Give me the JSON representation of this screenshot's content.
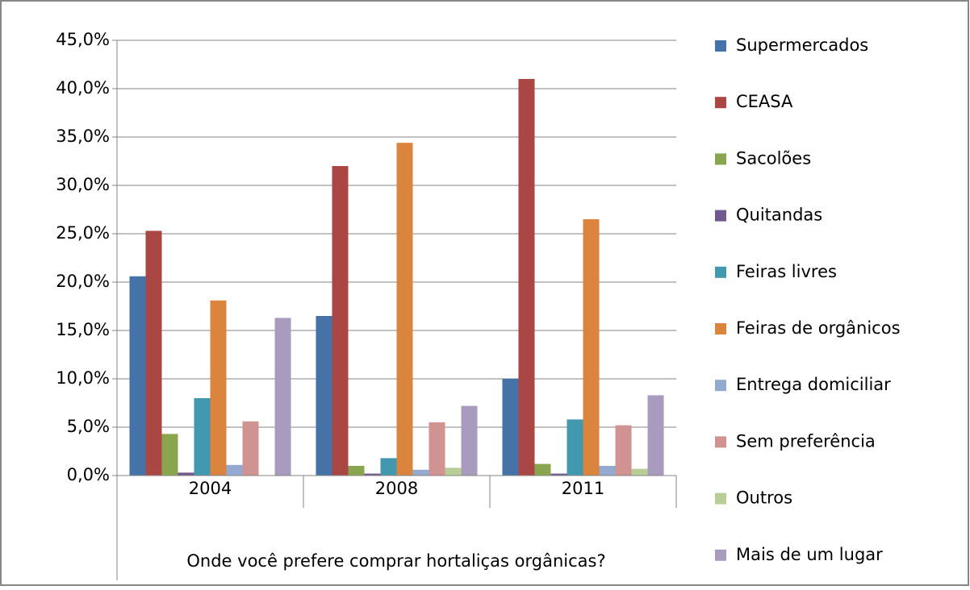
{
  "chart_data": {
    "type": "bar",
    "x_label": "Onde você prefere comprar hortaliças orgânicas?",
    "categories": [
      "2004",
      "2008",
      "2011"
    ],
    "series": [
      {
        "name": "Supermercados",
        "color": "#4572a7",
        "values": [
          20.6,
          16.5,
          10.0
        ]
      },
      {
        "name": "CEASA",
        "color": "#aa4643",
        "values": [
          25.3,
          32.0,
          41.0
        ]
      },
      {
        "name": "Sacolões",
        "color": "#89a54e",
        "values": [
          4.3,
          1.0,
          1.2
        ]
      },
      {
        "name": "Quitandas",
        "color": "#71588f",
        "values": [
          0.3,
          0.2,
          0.2
        ]
      },
      {
        "name": "Feiras livres",
        "color": "#4198af",
        "values": [
          8.0,
          1.8,
          5.8
        ]
      },
      {
        "name": "Feiras de orgânicos",
        "color": "#db843d",
        "values": [
          18.1,
          34.4,
          26.5
        ]
      },
      {
        "name": "Entrega domiciliar",
        "color": "#93a9cf",
        "values": [
          1.1,
          0.6,
          1.0
        ]
      },
      {
        "name": "Sem preferência",
        "color": "#d19392",
        "values": [
          5.6,
          5.5,
          5.2
        ]
      },
      {
        "name": "Outros",
        "color": "#b9cd96",
        "values": [
          0,
          0.8,
          0.7
        ]
      },
      {
        "name": "Mais de um lugar",
        "color": "#a99bbd",
        "values": [
          16.3,
          7.2,
          8.3
        ]
      }
    ],
    "ylim": [
      0,
      45
    ],
    "yticks": [
      {
        "value": 0,
        "label": "0,0%"
      },
      {
        "value": 5,
        "label": "5,0%"
      },
      {
        "value": 10,
        "label": "10,0%"
      },
      {
        "value": 15,
        "label": "15,0%"
      },
      {
        "value": 20,
        "label": "20,0%"
      },
      {
        "value": 25,
        "label": "25,0%"
      },
      {
        "value": 30,
        "label": "30,0%"
      },
      {
        "value": 35,
        "label": "35,0%"
      },
      {
        "value": 40,
        "label": "40,0%"
      },
      {
        "value": 45,
        "label": "45,0%"
      }
    ],
    "grid": true,
    "legend": "right"
  }
}
